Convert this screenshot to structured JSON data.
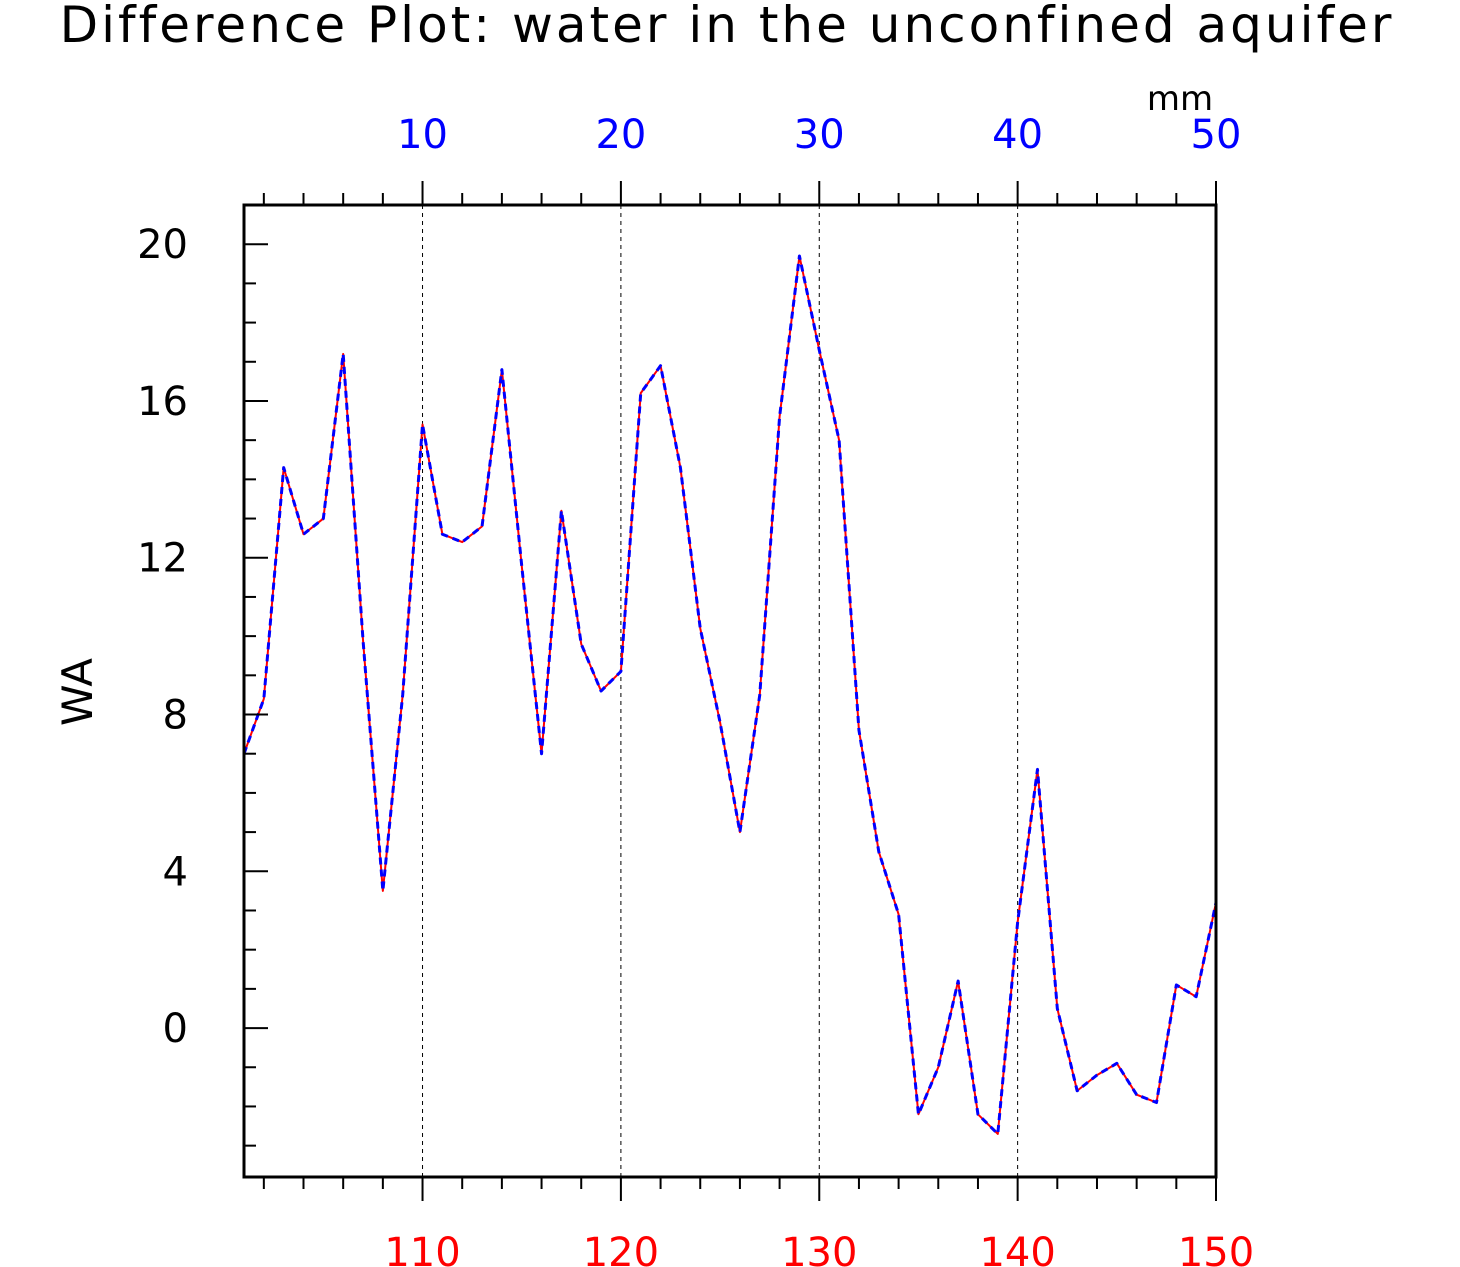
{
  "chart_data": {
    "type": "line",
    "title": "Difference Plot: water in the unconfined aquifer",
    "ylabel": "WA",
    "top_axis_units": "mm",
    "ylim": [
      -3.8,
      21
    ],
    "yticks": [
      "0",
      "4",
      "8",
      "12",
      "16",
      "20"
    ],
    "yminor_step": 1,
    "bottom_axis": {
      "range": [
        101,
        150
      ],
      "ticks": [
        "110",
        "120",
        "130",
        "140",
        "150"
      ],
      "color": "#ff0000",
      "minor_step": 2
    },
    "top_axis": {
      "range": [
        1,
        50
      ],
      "ticks": [
        "10",
        "20",
        "30",
        "40",
        "50"
      ],
      "color": "#0000ff",
      "minor_step": 2
    },
    "grid": "dashed verticals at major ticks",
    "series": [
      {
        "color": "#ff0000",
        "style": "solid",
        "x": [
          101,
          102,
          103,
          104,
          105,
          106,
          107,
          108,
          109,
          110,
          111,
          112,
          113,
          114,
          115,
          116,
          117,
          118,
          119,
          120,
          121,
          122,
          123,
          124,
          125,
          126,
          127,
          128,
          129,
          130,
          131,
          132,
          133,
          134,
          135,
          136,
          137,
          138,
          139,
          140,
          141,
          142,
          143,
          144,
          145,
          146,
          147,
          148,
          149,
          150
        ],
        "values": [
          7.0,
          8.4,
          14.3,
          12.6,
          13.0,
          17.2,
          9.9,
          3.5,
          8.5,
          15.4,
          12.6,
          12.4,
          12.8,
          16.8,
          11.8,
          7.0,
          13.2,
          9.8,
          8.6,
          9.1,
          16.2,
          16.9,
          14.3,
          10.2,
          7.8,
          5.0,
          8.5,
          15.6,
          19.7,
          17.3,
          15.0,
          7.6,
          4.5,
          2.9,
          -2.2,
          -1.0,
          1.2,
          -2.2,
          -2.7,
          2.7,
          6.6,
          0.5,
          -1.6,
          -1.2,
          -0.9,
          -1.7,
          -1.9,
          1.1,
          0.8,
          3.2
        ]
      },
      {
        "color": "#0000ff",
        "style": "dashed",
        "x": [
          101,
          102,
          103,
          104,
          105,
          106,
          107,
          108,
          109,
          110,
          111,
          112,
          113,
          114,
          115,
          116,
          117,
          118,
          119,
          120,
          121,
          122,
          123,
          124,
          125,
          126,
          127,
          128,
          129,
          130,
          131,
          132,
          133,
          134,
          135,
          136,
          137,
          138,
          139,
          140,
          141,
          142,
          143,
          144,
          145,
          146,
          147,
          148,
          149,
          150
        ],
        "values": [
          7.0,
          8.4,
          14.3,
          12.6,
          13.0,
          17.2,
          9.9,
          3.5,
          8.5,
          15.4,
          12.6,
          12.4,
          12.8,
          16.8,
          11.8,
          7.0,
          13.2,
          9.8,
          8.6,
          9.1,
          16.2,
          16.9,
          14.3,
          10.2,
          7.8,
          5.0,
          8.5,
          15.6,
          19.7,
          17.3,
          15.0,
          7.6,
          4.5,
          2.9,
          -2.2,
          -1.0,
          1.2,
          -2.2,
          -2.7,
          2.7,
          6.6,
          0.5,
          -1.6,
          -1.2,
          -0.9,
          -1.7,
          -1.9,
          1.1,
          0.8,
          3.2
        ]
      }
    ]
  }
}
